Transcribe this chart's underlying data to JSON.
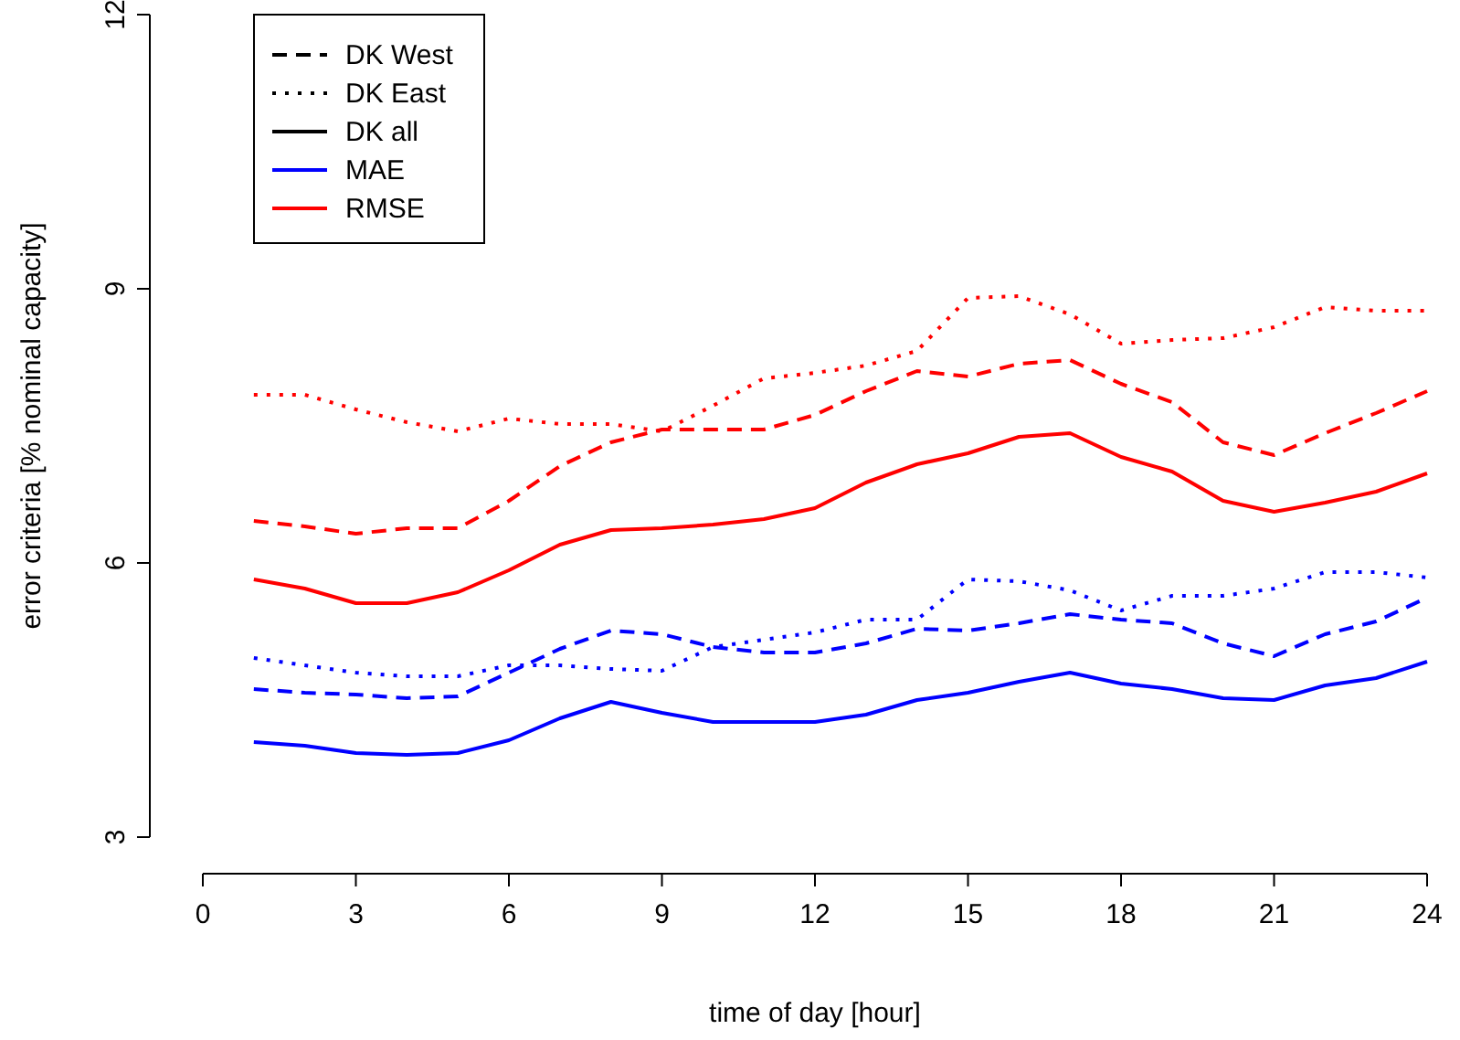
{
  "chart_data": {
    "type": "line",
    "xlabel": "time of day [hour]",
    "ylabel": "error criteria [% nominal capacity]",
    "x": [
      1,
      2,
      3,
      4,
      5,
      6,
      7,
      8,
      9,
      10,
      11,
      12,
      13,
      14,
      15,
      16,
      17,
      18,
      19,
      20,
      21,
      22,
      23,
      24
    ],
    "xlim": [
      0,
      24
    ],
    "xticks": [
      0,
      3,
      6,
      9,
      12,
      15,
      18,
      21,
      24
    ],
    "ylim": [
      3,
      12
    ],
    "yticks": [
      3,
      6,
      9,
      12
    ],
    "marker": "none",
    "annotations": [
      "DK West",
      "DK East",
      "DK all",
      "MAE",
      "RMSE"
    ],
    "series": [
      {
        "color": "#0000ff",
        "line_style": "dashed",
        "values": [
          4.62,
          4.58,
          4.56,
          4.52,
          4.54,
          4.8,
          5.06,
          5.26,
          5.22,
          5.08,
          5.02,
          5.02,
          5.12,
          5.28,
          5.26,
          5.34,
          5.44,
          5.38,
          5.34,
          5.12,
          4.98,
          5.22,
          5.36,
          5.62
        ]
      },
      {
        "color": "#0000ff",
        "line_style": "dotted",
        "values": [
          4.96,
          4.88,
          4.8,
          4.76,
          4.76,
          4.88,
          4.88,
          4.84,
          4.82,
          5.08,
          5.16,
          5.24,
          5.38,
          5.38,
          5.82,
          5.8,
          5.7,
          5.48,
          5.64,
          5.64,
          5.72,
          5.9,
          5.9,
          5.84
        ]
      },
      {
        "color": "#0000ff",
        "line_style": "solid",
        "values": [
          4.04,
          4.0,
          3.92,
          3.9,
          3.92,
          4.06,
          4.3,
          4.48,
          4.36,
          4.26,
          4.26,
          4.26,
          4.34,
          4.5,
          4.58,
          4.7,
          4.8,
          4.68,
          4.62,
          4.52,
          4.5,
          4.66,
          4.74,
          4.92
        ]
      },
      {
        "color": "#ff0000",
        "line_style": "dashed",
        "values": [
          6.46,
          6.4,
          6.32,
          6.38,
          6.38,
          6.68,
          7.06,
          7.32,
          7.46,
          7.46,
          7.46,
          7.62,
          7.88,
          8.1,
          8.04,
          8.18,
          8.22,
          7.96,
          7.76,
          7.32,
          7.18,
          7.42,
          7.64,
          7.88
        ]
      },
      {
        "color": "#ff0000",
        "line_style": "dotted",
        "values": [
          7.84,
          7.84,
          7.68,
          7.54,
          7.44,
          7.58,
          7.52,
          7.52,
          7.44,
          7.72,
          8.02,
          8.08,
          8.16,
          8.32,
          8.9,
          8.92,
          8.72,
          8.4,
          8.44,
          8.46,
          8.58,
          8.8,
          8.76,
          8.76
        ]
      },
      {
        "color": "#ff0000",
        "line_style": "solid",
        "values": [
          5.82,
          5.72,
          5.56,
          5.56,
          5.68,
          5.92,
          6.2,
          6.36,
          6.38,
          6.42,
          6.48,
          6.6,
          6.88,
          7.08,
          7.2,
          7.38,
          7.42,
          7.16,
          7.0,
          6.68,
          6.56,
          6.66,
          6.78,
          6.98
        ]
      }
    ]
  }
}
